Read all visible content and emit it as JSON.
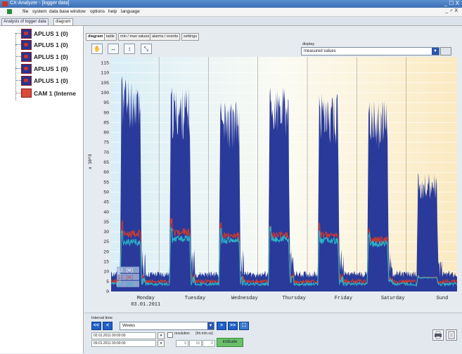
{
  "window": {
    "title": "CX-Analyzer - [logger data]",
    "controls": "_ ☐ X"
  },
  "menu": {
    "items": [
      "file",
      "system",
      "data base",
      "window",
      "options",
      "help",
      "language"
    ],
    "controls": "_ ♂ X"
  },
  "doc_tabs": [
    "Analysis of logger data",
    "diagram"
  ],
  "tree": {
    "items": [
      "APLUS 1 (0)",
      "APLUS 1 (0)",
      "APLUS 1 (0)",
      "APLUS 1 (0)",
      "APLUS 1 (0)",
      "CAM 1 (Interne"
    ]
  },
  "sub_tabs": [
    "diagram",
    "table",
    "min / max values",
    "alarms / events",
    "settings"
  ],
  "toolbar": {
    "icons": [
      "hand-icon",
      "zoom-x-icon",
      "zoom-y-icon",
      "zoom-xy-icon"
    ]
  },
  "display": {
    "label": "display",
    "value": "measured values",
    "dd": "▼"
  },
  "interval": {
    "label": "Interval time",
    "nav": [
      "<<",
      "<",
      ">",
      ">>"
    ],
    "period": "Weeks",
    "dd": "▼",
    "start": "02.01.2011 00:00:00",
    "end": "09.01.2011 00:00:00",
    "cal": "▾",
    "resolution_label": "resolution",
    "resolution_unit": "(hh.mm.ss)",
    "resolution_values": [
      "0",
      "15",
      "0"
    ],
    "indicate_label": "indicate"
  },
  "chart_data": {
    "type": "area",
    "ylabel": "x 10^3",
    "ylim": [
      0,
      118
    ],
    "yticks": [
      0,
      5,
      10,
      15,
      20,
      25,
      30,
      35,
      40,
      45,
      50,
      55,
      60,
      65,
      70,
      75,
      80,
      85,
      90,
      95,
      100,
      105,
      110,
      115
    ],
    "xticks": [
      "Monday",
      "Tuesday",
      "Wednesday",
      "Thursday",
      "Friday",
      "Saturday",
      "Sund"
    ],
    "xsubtick": "03.01.2011",
    "legend": [
      "L1 [W]",
      "L2 [W]",
      "L3 [W]"
    ],
    "series": [
      {
        "name": "L1 [W]",
        "color": "#2a3a9a",
        "peaks": [
          110,
          103,
          96,
          103,
          100,
          96,
          60
        ]
      },
      {
        "name": "L2 [W]",
        "color": "#d23a2a",
        "peaks": [
          36,
          37,
          35,
          35,
          35,
          32,
          0
        ]
      },
      {
        "name": "L3 [W]",
        "color": "#2bb5c9",
        "peaks": [
          31,
          33,
          32,
          33,
          32,
          30,
          0
        ]
      }
    ]
  }
}
